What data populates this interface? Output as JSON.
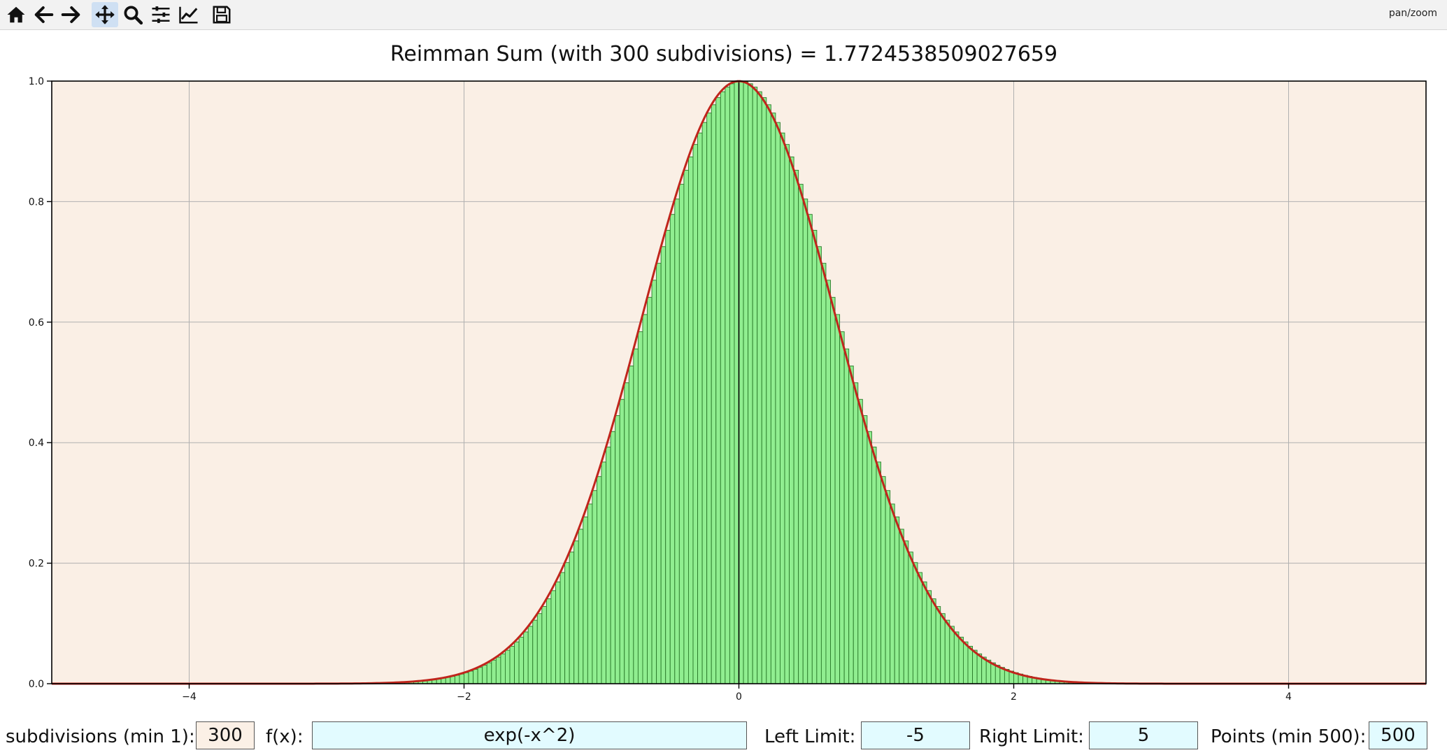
{
  "toolbar": {
    "buttons": [
      {
        "name": "home-icon"
      },
      {
        "name": "back-icon"
      },
      {
        "name": "forward-icon"
      },
      {
        "name": "pan-icon",
        "active": true
      },
      {
        "name": "zoom-icon"
      },
      {
        "name": "configure-subplots-icon"
      },
      {
        "name": "edit-axis-icon"
      },
      {
        "name": "save-icon"
      }
    ],
    "mode_label": "pan/zoom"
  },
  "chart_data": {
    "type": "bar",
    "title": "Reimman Sum (with 300 subdivisions) = 1.7724538509027659",
    "function": "exp(-x^2)",
    "xlim": [
      -5,
      5
    ],
    "ylim": [
      0,
      1.0
    ],
    "xticks": [
      -4,
      -2,
      0,
      2,
      4
    ],
    "xtick_labels": [
      "−4",
      "−2",
      "0",
      "2",
      "4"
    ],
    "yticks": [
      0.0,
      0.2,
      0.4,
      0.6,
      0.8,
      1.0
    ],
    "ytick_labels": [
      "0.0",
      "0.2",
      "0.4",
      "0.6",
      "0.8",
      "1.0"
    ],
    "grid": true,
    "subdivisions": 300,
    "bars": {
      "left": -5,
      "right": 5,
      "count": 300,
      "heights": "exp(-x^2) evaluated at the left endpoint of each subinterval"
    },
    "curve": {
      "points": 500,
      "x_range": [
        -5,
        5
      ]
    },
    "colors": {
      "plot_background": "#faefe5",
      "bar_fill": "#90ee90",
      "bar_edge": "#2a7a2a",
      "curve": "#c0251c",
      "grid": "#b0b0b0"
    }
  },
  "controls": {
    "subdivisions_label": "subdivisions (min 1):",
    "subdivisions_value": "300",
    "fx_label": "f(x):",
    "fx_value": "exp(-x^2)",
    "left_label": "Left Limit:",
    "left_value": "-5",
    "right_label": "Right Limit:",
    "right_value": "5",
    "points_label": "Points (min 500):",
    "points_value": "500"
  }
}
